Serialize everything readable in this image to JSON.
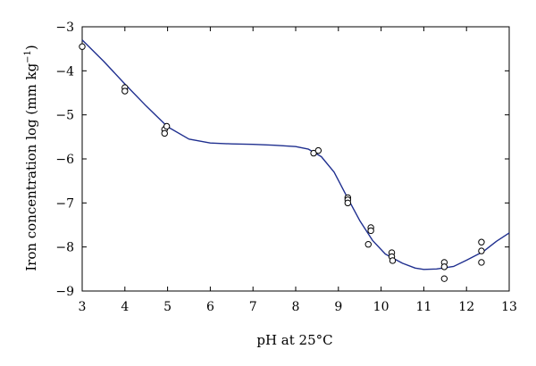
{
  "chart_data": {
    "type": "scatter",
    "title": "",
    "xlabel": "pH at 25°C",
    "ylabel_main": "Iron concentration log (mm kg",
    "ylabel_sup": "−1",
    "ylabel_close": ")",
    "xlim": [
      3,
      13
    ],
    "ylim": [
      -9,
      -3
    ],
    "xticks": [
      3,
      4,
      5,
      6,
      7,
      8,
      9,
      10,
      11,
      12,
      13
    ],
    "yticks": [
      -3,
      -4,
      -5,
      -6,
      -7,
      -8,
      -9
    ],
    "ytick_labels": [
      "−3",
      "−4",
      "−5",
      "−6",
      "−7",
      "−8",
      "−9"
    ],
    "grid": false,
    "colors": {
      "curve": "#1f2f8f",
      "markers": "#000000"
    },
    "series": [
      {
        "kind": "points",
        "marker": "open-circle",
        "points": [
          [
            3.0,
            -3.45
          ],
          [
            4.0,
            -4.38
          ],
          [
            4.0,
            -4.46
          ],
          [
            4.93,
            -5.33
          ],
          [
            4.93,
            -5.42
          ],
          [
            4.98,
            -5.26
          ],
          [
            8.42,
            -5.87
          ],
          [
            8.53,
            -5.81
          ],
          [
            9.22,
            -6.88
          ],
          [
            9.22,
            -6.93
          ],
          [
            9.22,
            -7.0
          ],
          [
            9.7,
            -7.94
          ],
          [
            9.76,
            -7.56
          ],
          [
            9.76,
            -7.63
          ],
          [
            10.25,
            -8.13
          ],
          [
            10.25,
            -8.22
          ],
          [
            10.27,
            -8.31
          ],
          [
            11.48,
            -8.35
          ],
          [
            11.48,
            -8.45
          ],
          [
            11.48,
            -8.72
          ],
          [
            12.35,
            -7.89
          ],
          [
            12.35,
            -8.09
          ],
          [
            12.35,
            -8.35
          ]
        ]
      },
      {
        "kind": "curve",
        "points": [
          [
            3.0,
            -3.3
          ],
          [
            3.5,
            -3.78
          ],
          [
            4.0,
            -4.3
          ],
          [
            4.5,
            -4.8
          ],
          [
            5.0,
            -5.27
          ],
          [
            5.5,
            -5.55
          ],
          [
            6.0,
            -5.64
          ],
          [
            6.5,
            -5.66
          ],
          [
            7.0,
            -5.67
          ],
          [
            7.5,
            -5.69
          ],
          [
            8.0,
            -5.72
          ],
          [
            8.3,
            -5.78
          ],
          [
            8.6,
            -5.95
          ],
          [
            8.9,
            -6.3
          ],
          [
            9.2,
            -6.86
          ],
          [
            9.5,
            -7.4
          ],
          [
            9.8,
            -7.85
          ],
          [
            10.1,
            -8.16
          ],
          [
            10.5,
            -8.37
          ],
          [
            10.8,
            -8.48
          ],
          [
            11.0,
            -8.51
          ],
          [
            11.3,
            -8.5
          ],
          [
            11.7,
            -8.44
          ],
          [
            12.0,
            -8.3
          ],
          [
            12.4,
            -8.1
          ],
          [
            12.7,
            -7.87
          ],
          [
            13.0,
            -7.68
          ]
        ]
      }
    ]
  }
}
